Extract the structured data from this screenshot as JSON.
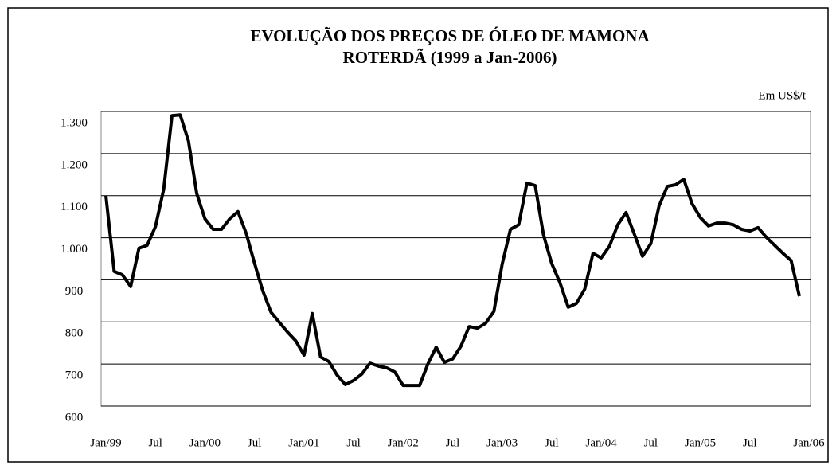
{
  "chart_data": {
    "type": "line",
    "title": "EVOLUÇÃO DOS PREÇOS DE ÓLEO DE MAMONA",
    "subtitle": "ROTERDÃ (1999 a Jan-2006)",
    "unit_label": "Em US$/t",
    "categories": [
      "Jan/99",
      null,
      null,
      null,
      null,
      null,
      "Jul",
      null,
      null,
      null,
      null,
      null,
      "Jan/00",
      null,
      null,
      null,
      null,
      null,
      "Jul",
      null,
      null,
      null,
      null,
      null,
      "Jan/01",
      null,
      null,
      null,
      null,
      null,
      "Jul",
      null,
      null,
      null,
      null,
      null,
      "Jan/02",
      null,
      null,
      null,
      null,
      null,
      "Jul",
      null,
      null,
      null,
      null,
      null,
      "Jan/03",
      null,
      null,
      null,
      null,
      null,
      "Jul",
      null,
      null,
      null,
      null,
      null,
      "Jan/04",
      null,
      null,
      null,
      null,
      null,
      "Jul",
      null,
      null,
      null,
      null,
      null,
      "Jan/05",
      null,
      null,
      null,
      null,
      null,
      "Jul",
      null,
      null,
      null,
      null,
      null,
      "Jan/06"
    ],
    "series": [
      {
        "color": "#000000",
        "values": [
          1100,
          920,
          912,
          884,
          975,
          982,
          1026,
          1115,
          1290,
          1292,
          1230,
          1105,
          1045,
          1020,
          1020,
          1045,
          1062,
          1010,
          940,
          874,
          823,
          799,
          776,
          755,
          721,
          820,
          717,
          706,
          674,
          651,
          661,
          676,
          702,
          695,
          691,
          681,
          649,
          649,
          649,
          700,
          740,
          704,
          712,
          742,
          789,
          785,
          797,
          825,
          937,
          1020,
          1031,
          1130,
          1124,
          1007,
          939,
          893,
          835,
          844,
          878,
          963,
          952,
          980,
          1031,
          1060,
          1009,
          956,
          986,
          1075,
          1122,
          1126,
          1139,
          1081,
          1048,
          1028,
          1035,
          1035,
          1031,
          1020,
          1016,
          1024,
          1001,
          982,
          963,
          946,
          861
        ]
      }
    ],
    "ylim": [
      600,
      1300
    ],
    "yticks": [
      600,
      700,
      800,
      900,
      {
        "value": 1000,
        "label": "1.000"
      },
      {
        "value": 1100,
        "label": "1.100"
      },
      {
        "value": 1200,
        "label": "1.200"
      },
      {
        "value": 1300,
        "label": "1.300"
      }
    ],
    "grid": true
  }
}
